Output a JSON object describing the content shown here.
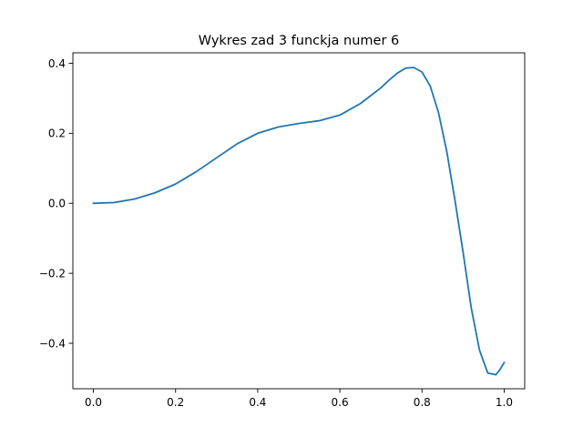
{
  "chart_data": {
    "type": "line",
    "title": "Wykres zad 3 funckja numer 6",
    "xlabel": "",
    "ylabel": "",
    "xlim": [
      -0.05,
      1.05
    ],
    "ylim": [
      -0.53,
      0.43
    ],
    "x_ticks": [
      0.0,
      0.2,
      0.4,
      0.6,
      0.8,
      1.0
    ],
    "x_tick_labels": [
      "0.0",
      "0.2",
      "0.4",
      "0.6",
      "0.8",
      "1.0"
    ],
    "y_ticks": [
      -0.4,
      -0.2,
      0.0,
      0.2,
      0.4
    ],
    "y_tick_labels": [
      "−0.4",
      "−0.2",
      "0.0",
      "0.2",
      "0.4"
    ],
    "grid": false,
    "legend": "none",
    "series": [
      {
        "color": "#1f77b4",
        "x": [
          0.0,
          0.05,
          0.1,
          0.15,
          0.2,
          0.25,
          0.3,
          0.35,
          0.4,
          0.45,
          0.5,
          0.55,
          0.6,
          0.65,
          0.7,
          0.72,
          0.74,
          0.76,
          0.78,
          0.8,
          0.82,
          0.84,
          0.86,
          0.88,
          0.9,
          0.92,
          0.94,
          0.96,
          0.98,
          0.99,
          1.0
        ],
        "y": [
          0.0,
          0.002,
          0.012,
          0.03,
          0.055,
          0.09,
          0.13,
          0.17,
          0.2,
          0.218,
          0.228,
          0.236,
          0.252,
          0.285,
          0.33,
          0.352,
          0.372,
          0.386,
          0.388,
          0.375,
          0.335,
          0.26,
          0.15,
          0.01,
          -0.14,
          -0.3,
          -0.42,
          -0.485,
          -0.49,
          -0.475,
          -0.455
        ]
      }
    ]
  }
}
